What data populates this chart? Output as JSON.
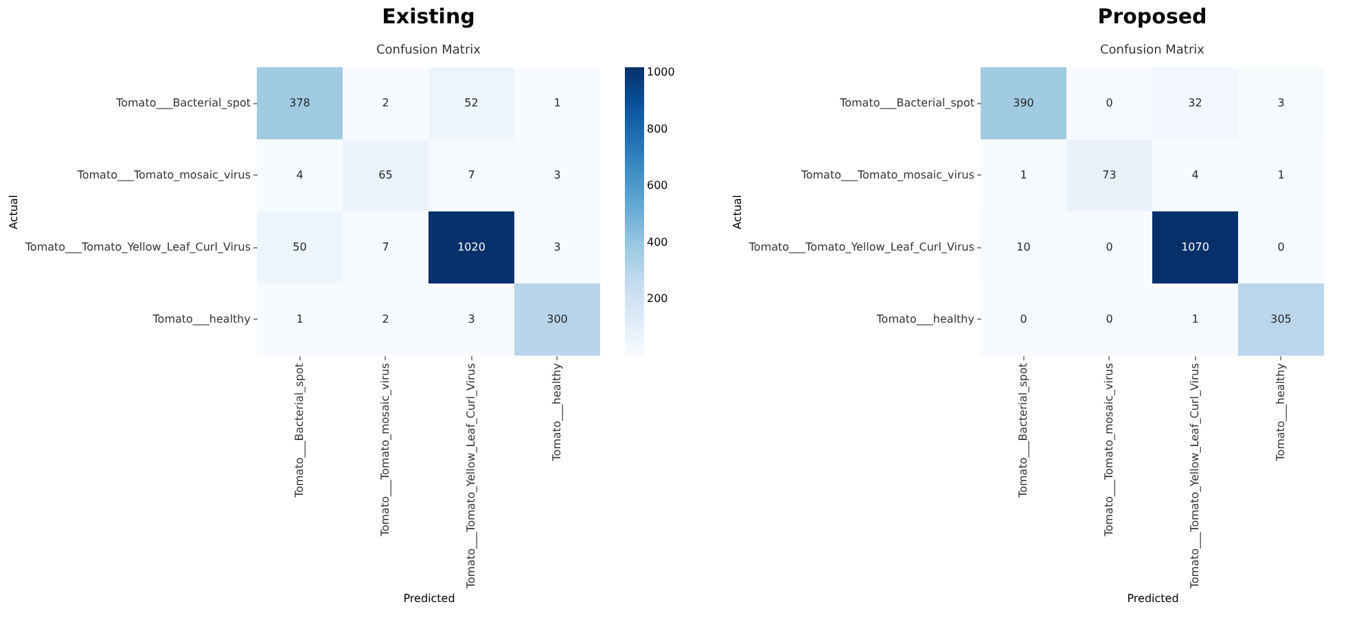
{
  "chart_data": [
    {
      "type": "heatmap",
      "title": "Existing",
      "subtitle": "Confusion Matrix",
      "xlabel": "Predicted",
      "ylabel": "Actual",
      "categories": [
        "Tomato___Bacterial_spot",
        "Tomato___Tomato_mosaic_virus",
        "Tomato___Tomato_Yellow_Leaf_Curl_Virus",
        "Tomato___healthy"
      ],
      "y_categories": [
        "Tomato___Bacterial_spot",
        "Tomato___Tomato_mosaic_virus",
        "Tomato___Tomato_Yellow_Leaf_Curl_Virus",
        "Tomato___healthy"
      ],
      "cells": [
        [
          378,
          2,
          52,
          1
        ],
        [
          4,
          65,
          7,
          3
        ],
        [
          50,
          7,
          1020,
          3
        ],
        [
          1,
          2,
          3,
          300
        ]
      ],
      "clim": [
        1,
        1020
      ],
      "cticks": [
        200,
        400,
        600,
        800,
        1000
      ],
      "data_labels": true
    },
    {
      "type": "heatmap",
      "title": "Proposed",
      "subtitle": "Confusion Matrix",
      "xlabel": "Predicted",
      "ylabel": "Actual",
      "categories": [
        "Tomato___Bacterial_spot",
        "Tomato___Tomato_mosaic_virus",
        "Tomato___Tomato_Yellow_Leaf_Curl_Virus",
        "Tomato___healthy"
      ],
      "y_categories": [
        "Tomato___Bacterial_spot",
        "Tomato___Tomato_mosaic_virus",
        "Tomato___Tomato_Yellow_Leaf_Curl_Virus",
        "Tomato___healthy"
      ],
      "cells": [
        [
          390,
          0,
          32,
          3
        ],
        [
          1,
          73,
          4,
          1
        ],
        [
          10,
          0,
          1070,
          0
        ],
        [
          0,
          0,
          1,
          305
        ]
      ],
      "data_labels": true
    }
  ]
}
